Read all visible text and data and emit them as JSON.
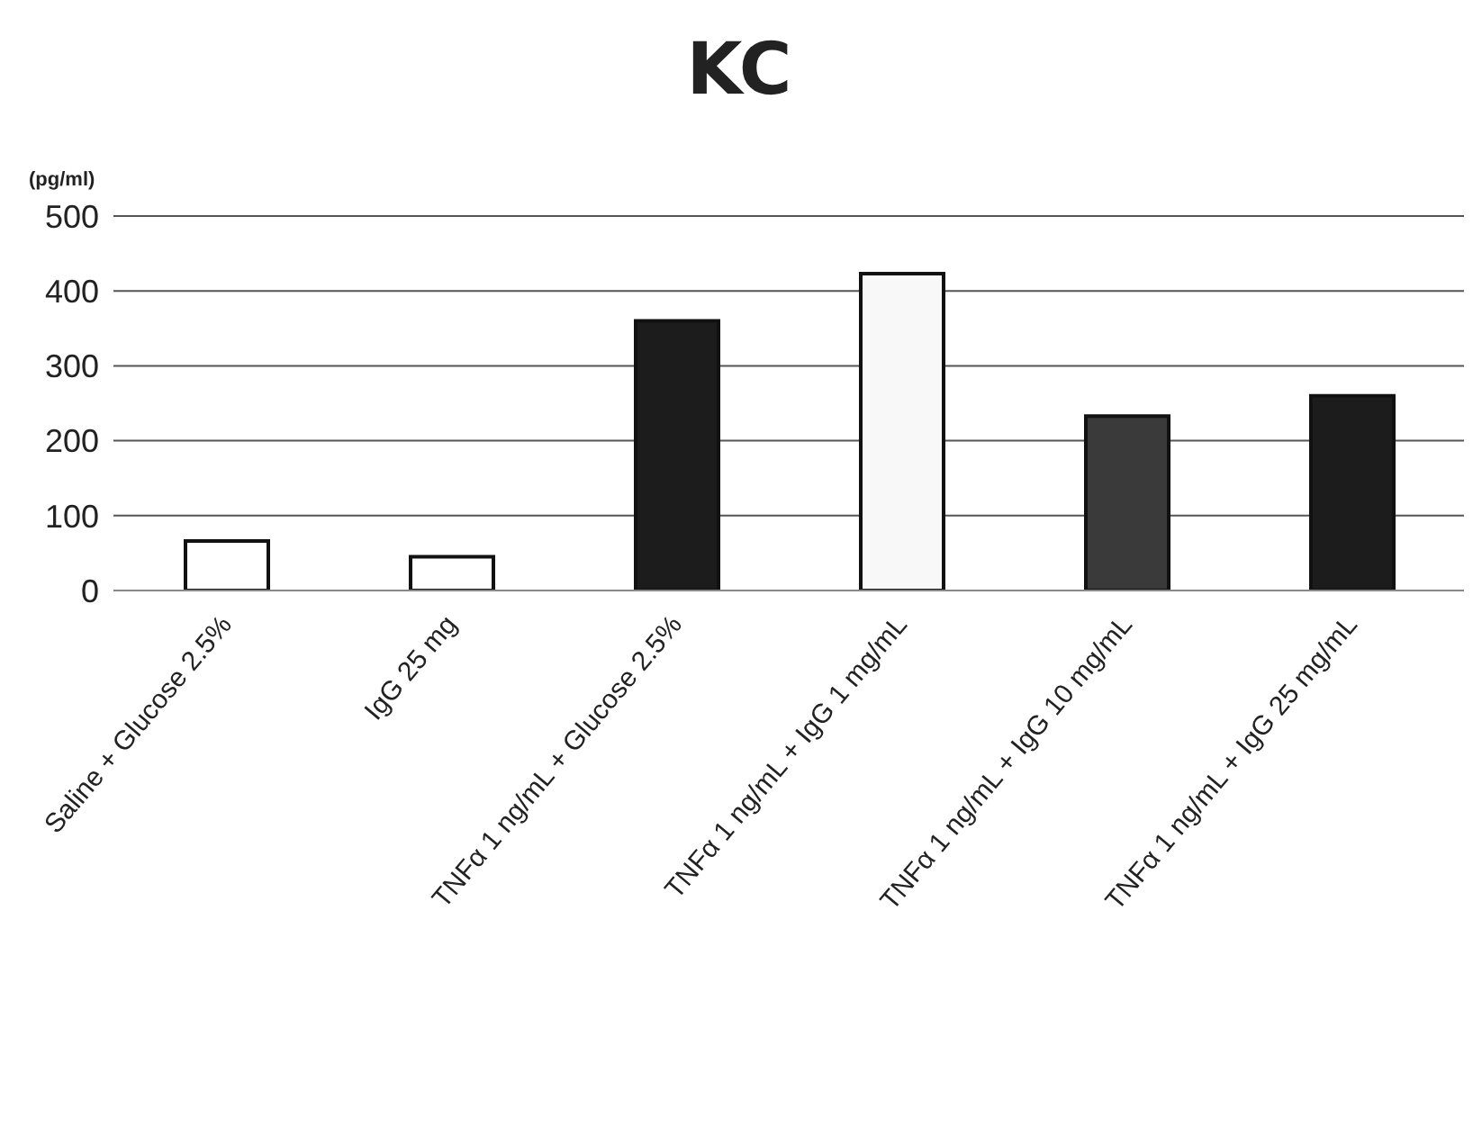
{
  "chart_data": {
    "type": "bar",
    "title": "KC",
    "ylabel": "(pg/ml)",
    "categories": [
      "Saline + Glucose 2.5%",
      "IgG 25 mg",
      "TNFα 1 ng/mL + Glucose 2.5%",
      "TNFα 1 ng/mL + IgG 1 mg/mL",
      "TNFα 1 ng/mL + IgG 10 mg/mL",
      "TNFα 1 ng/mL + IgG 25 mg/mL"
    ],
    "values": [
      66,
      45,
      360,
      423,
      233,
      260
    ],
    "colors": [
      "#ffffff",
      "#ffffff",
      "#1c1c1c",
      "#f8f8f8",
      "#3a3a3a",
      "#1c1c1c"
    ],
    "ylim": [
      0,
      500
    ],
    "yticks": [
      0,
      100,
      200,
      300,
      400,
      500
    ],
    "grid": "y"
  }
}
